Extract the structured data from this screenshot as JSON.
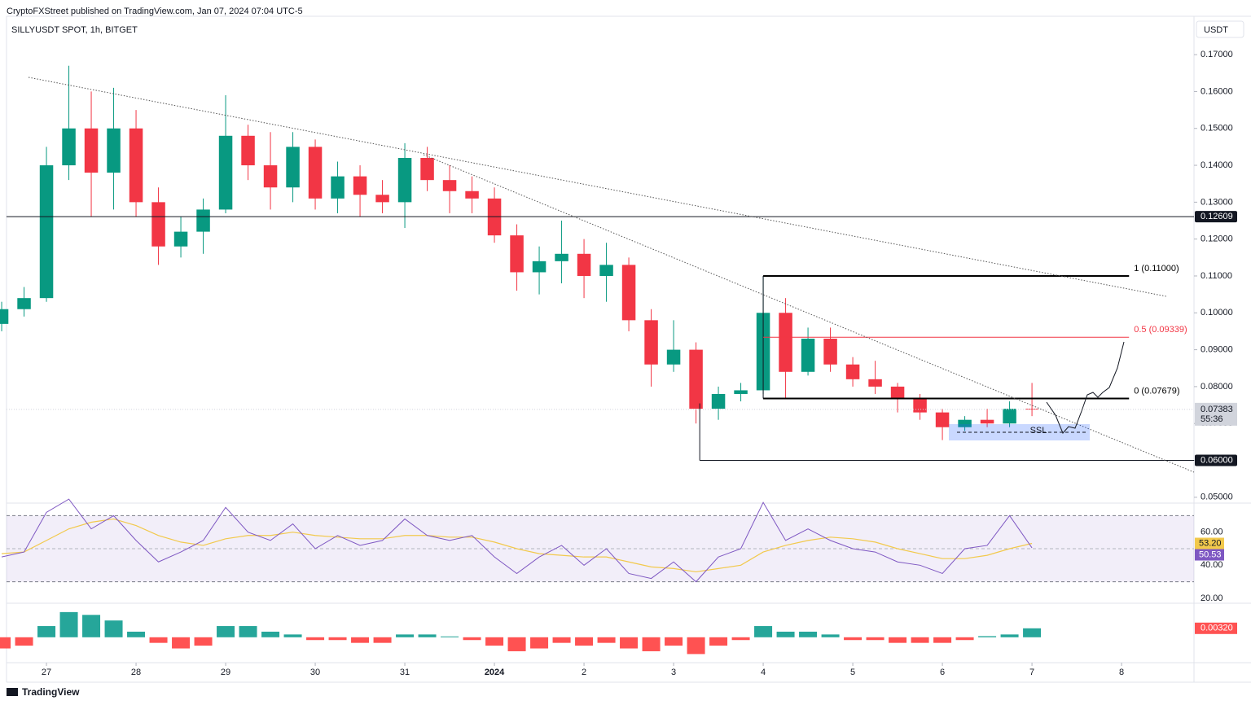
{
  "header": {
    "publisher": "CryptoFXStreet published on TradingView.com, Jan 07, 2024 07:04 UTC-5",
    "symbol": "SILLYUSDT SPOT, 1h, BITGET",
    "currency": "USDT",
    "brand": "TradingView"
  },
  "chart_data": [
    {
      "type": "candlestick",
      "annotation": "SSL",
      "up_color": "#089981",
      "down_color": "#f23645",
      "x": [
        -12,
        -6,
        0,
        6,
        12,
        18,
        24,
        30,
        36,
        42,
        48,
        54,
        60,
        66,
        72,
        78,
        84,
        90,
        96,
        102,
        108,
        114,
        120,
        126,
        132,
        138,
        144,
        150,
        156,
        162,
        168,
        174,
        180,
        186,
        192,
        198,
        204,
        210,
        216,
        222,
        228,
        234,
        240,
        246,
        252,
        258,
        264
      ],
      "open": [
        0.097,
        0.101,
        0.104,
        0.14,
        0.15,
        0.138,
        0.15,
        0.13,
        0.118,
        0.122,
        0.128,
        0.148,
        0.14,
        0.134,
        0.145,
        0.131,
        0.137,
        0.132,
        0.13,
        0.142,
        0.136,
        0.133,
        0.131,
        0.121,
        0.111,
        0.114,
        0.116,
        0.11,
        0.113,
        0.098,
        0.086,
        0.09,
        0.074,
        0.078,
        0.079,
        0.1,
        0.084,
        0.093,
        0.086,
        0.082,
        0.08,
        0.077,
        0.073,
        0.069,
        0.071,
        0.07,
        0.074
      ],
      "high": [
        0.103,
        0.107,
        0.145,
        0.167,
        0.16,
        0.161,
        0.155,
        0.134,
        0.126,
        0.131,
        0.159,
        0.151,
        0.149,
        0.149,
        0.147,
        0.141,
        0.14,
        0.136,
        0.146,
        0.145,
        0.14,
        0.137,
        0.134,
        0.124,
        0.118,
        0.125,
        0.12,
        0.119,
        0.115,
        0.101,
        0.098,
        0.092,
        0.08,
        0.081,
        0.11,
        0.104,
        0.096,
        0.096,
        0.088,
        0.087,
        0.081,
        0.078,
        0.074,
        0.072,
        0.074,
        0.076,
        0.081
      ],
      "low": [
        0.095,
        0.099,
        0.103,
        0.136,
        0.126,
        0.128,
        0.126,
        0.113,
        0.115,
        0.116,
        0.127,
        0.136,
        0.128,
        0.13,
        0.128,
        0.127,
        0.126,
        0.127,
        0.123,
        0.133,
        0.127,
        0.127,
        0.119,
        0.106,
        0.105,
        0.108,
        0.104,
        0.103,
        0.095,
        0.08,
        0.084,
        0.07,
        0.071,
        0.076,
        0.078,
        0.077,
        0.083,
        0.084,
        0.08,
        0.078,
        0.073,
        0.071,
        0.0655,
        0.068,
        0.069,
        0.069,
        0.072
      ],
      "close": [
        0.101,
        0.104,
        0.14,
        0.15,
        0.138,
        0.15,
        0.13,
        0.118,
        0.122,
        0.128,
        0.148,
        0.14,
        0.134,
        0.145,
        0.131,
        0.137,
        0.132,
        0.13,
        0.142,
        0.136,
        0.133,
        0.131,
        0.121,
        0.111,
        0.114,
        0.116,
        0.11,
        0.113,
        0.098,
        0.086,
        0.09,
        0.074,
        0.078,
        0.079,
        0.1,
        0.084,
        0.093,
        0.086,
        0.082,
        0.08,
        0.077,
        0.073,
        0.069,
        0.071,
        0.07,
        0.074,
        0.07383
      ],
      "xlim": [
        -10.7,
        307.4
      ],
      "xticks": [
        {
          "value": 0,
          "label": "27"
        },
        {
          "value": 24,
          "label": "28"
        },
        {
          "value": 48,
          "label": "29"
        },
        {
          "value": 72,
          "label": "30"
        },
        {
          "value": 96,
          "label": "31"
        },
        {
          "value": 120,
          "label": "2024"
        },
        {
          "value": 144,
          "label": "2"
        },
        {
          "value": 168,
          "label": "3"
        },
        {
          "value": 192,
          "label": "4"
        },
        {
          "value": 216,
          "label": "5"
        },
        {
          "value": 240,
          "label": "6"
        },
        {
          "value": 264,
          "label": "7"
        },
        {
          "value": 288,
          "label": "8"
        }
      ],
      "ylim": [
        0.0493,
        0.1804
      ],
      "yticks": [
        {
          "value": 0.05,
          "label": "0.05000"
        },
        {
          "value": 0.06,
          "label": "0.06000"
        },
        {
          "value": 0.07,
          "label": "0.07000"
        },
        {
          "value": 0.08,
          "label": "0.08000"
        },
        {
          "value": 0.09,
          "label": "0.09000"
        },
        {
          "value": 0.1,
          "label": "0.10000"
        },
        {
          "value": 0.11,
          "label": "0.11000"
        },
        {
          "value": 0.12,
          "label": "0.12000"
        },
        {
          "value": 0.13,
          "label": "0.13000"
        },
        {
          "value": 0.14,
          "label": "0.14000"
        },
        {
          "value": 0.15,
          "label": "0.15000"
        },
        {
          "value": 0.16,
          "label": "0.16000"
        },
        {
          "value": 0.17,
          "label": "0.17000"
        }
      ],
      "levels": [
        {
          "value": 0.12609,
          "label": "0.12609",
          "start": -10.7
        },
        {
          "value": 0.06,
          "label": "0.06000",
          "start": 175
        }
      ],
      "fib": {
        "start": 192,
        "end": 290,
        "lines": [
          {
            "value": 0.11,
            "label": "1 (0.11000)",
            "color": "#000000"
          },
          {
            "value": 0.09339,
            "label": "0.5 (0.09339)",
            "color": "#f23645"
          },
          {
            "value": 0.07679,
            "label": "0 (0.07679)",
            "color": "#000000"
          }
        ]
      },
      "last_price": {
        "value": 0.07383,
        "label": "0.07383",
        "countdown": "55:36"
      }
    },
    {
      "type": "line",
      "ylim": [
        17.5,
        76.6
      ],
      "band": [
        30,
        70
      ],
      "mid": 50,
      "yticks": [
        {
          "value": 20,
          "label": "20.00"
        },
        {
          "value": 40,
          "label": "40.00"
        },
        {
          "value": 60,
          "label": "60.00"
        }
      ],
      "series": [
        {
          "color": "#7e57c2",
          "values": [
            45,
            48,
            72,
            80,
            62,
            70,
            55,
            42,
            48,
            55,
            75,
            60,
            55,
            65,
            50,
            58,
            52,
            55,
            68,
            58,
            55,
            58,
            45,
            35,
            45,
            52,
            40,
            50,
            35,
            32,
            42,
            30,
            45,
            50,
            78,
            55,
            62,
            55,
            50,
            48,
            42,
            40,
            35,
            50,
            52,
            70,
            50.53
          ],
          "last_label": "50.53"
        },
        {
          "color": "#f2c94c",
          "values": [
            47,
            48,
            55,
            62,
            66,
            68,
            64,
            58,
            54,
            52,
            56,
            58,
            58,
            60,
            58,
            57,
            56,
            56,
            58,
            58,
            57,
            57,
            54,
            50,
            47,
            46,
            45,
            45,
            42,
            39,
            38,
            36,
            38,
            40,
            48,
            52,
            55,
            57,
            56,
            54,
            50,
            47,
            44,
            44,
            46,
            50,
            53.2
          ],
          "last_label": "53.20"
        }
      ]
    },
    {
      "type": "bar",
      "ylim": [
        -0.0085,
        0.011
      ],
      "up_color": "#26a69a",
      "down_color": "#ff5252",
      "values": [
        -0.004,
        -0.003,
        0.004,
        0.009,
        0.008,
        0.006,
        0.002,
        -0.002,
        -0.004,
        -0.003,
        0.004,
        0.004,
        0.002,
        0.001,
        -0.001,
        -0.001,
        -0.002,
        -0.002,
        0.001,
        0.001,
        0.0003,
        -0.001,
        -0.003,
        -0.005,
        -0.004,
        -0.002,
        -0.003,
        -0.002,
        -0.004,
        -0.005,
        -0.003,
        -0.006,
        -0.003,
        -0.001,
        0.004,
        0.002,
        0.002,
        0.001,
        -0.001,
        -0.001,
        -0.002,
        -0.002,
        -0.002,
        -0.001,
        0.0004,
        0.001,
        0.0032
      ],
      "last_label": "0.00320"
    }
  ]
}
